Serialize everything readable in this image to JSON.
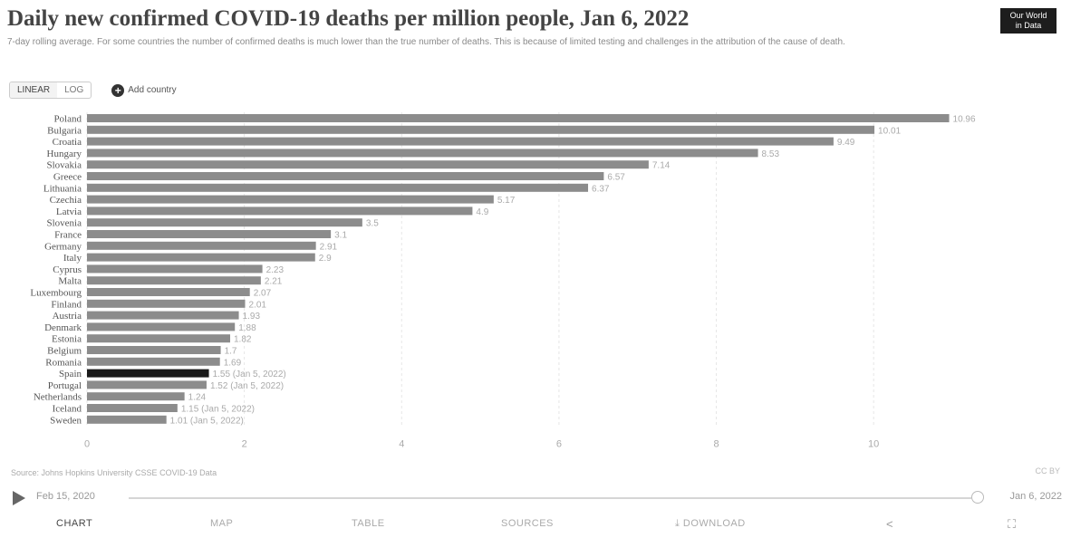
{
  "header": {
    "title": "Daily new confirmed COVID-19 deaths per million people, Jan 6, 2022",
    "subtitle": "7-day rolling average. For some countries the number of confirmed deaths is much lower than the true number of deaths. This is because of limited testing and challenges in the attribution of the cause of death."
  },
  "logo": {
    "line1": "Our World",
    "line2": "in Data"
  },
  "controls": {
    "toggle_options": [
      "LINEAR",
      "LOG"
    ],
    "add_country_label": "Add country"
  },
  "chart_data": {
    "type": "bar",
    "orientation": "horizontal",
    "xlim": [
      0,
      11
    ],
    "x_ticks": [
      "0",
      "2",
      "4",
      "6",
      "8",
      "10"
    ],
    "categories": [
      "Poland",
      "Bulgaria",
      "Croatia",
      "Hungary",
      "Slovakia",
      "Greece",
      "Lithuania",
      "Czechia",
      "Latvia",
      "Slovenia",
      "France",
      "Germany",
      "Italy",
      "Cyprus",
      "Malta",
      "Luxembourg",
      "Finland",
      "Austria",
      "Denmark",
      "Estonia",
      "Belgium",
      "Romania",
      "Spain",
      "Portugal",
      "Netherlands",
      "Iceland",
      "Sweden"
    ],
    "values": [
      10.96,
      10.01,
      9.49,
      8.53,
      7.14,
      6.57,
      6.37,
      5.17,
      4.9,
      3.5,
      3.1,
      2.91,
      2.9,
      2.23,
      2.21,
      2.07,
      2.01,
      1.93,
      1.88,
      1.82,
      1.7,
      1.69,
      1.55,
      1.52,
      1.24,
      1.15,
      1.01
    ],
    "value_labels": [
      "10.96",
      "10.01",
      "9.49",
      "8.53",
      "7.14",
      "6.57",
      "6.37",
      "5.17",
      "4.9",
      "3.5",
      "3.1",
      "2.91",
      "2.9",
      "2.23",
      "2.21",
      "2.07",
      "2.01",
      "1.93",
      "1.88",
      "1.82",
      "1.7",
      "1.69",
      "1.55 (Jan 5, 2022)",
      "1.52 (Jan 5, 2022)",
      "1.24",
      "1.15 (Jan 5, 2022)",
      "1.01 (Jan 5, 2022)"
    ],
    "bar_color": "#8c8c8c",
    "highlight_color": "#1a1a1a",
    "highlight_category": "Spain",
    "grid": true
  },
  "footer": {
    "source": "Source: Johns Hopkins University CSSE COVID-19 Data",
    "cc": "CC BY"
  },
  "timeline": {
    "start": "Feb 15, 2020",
    "end": "Jan 6, 2022"
  },
  "tabs": {
    "chart": "CHART",
    "map": "MAP",
    "table": "TABLE",
    "sources": "SOURCES",
    "download": "DOWNLOAD"
  }
}
